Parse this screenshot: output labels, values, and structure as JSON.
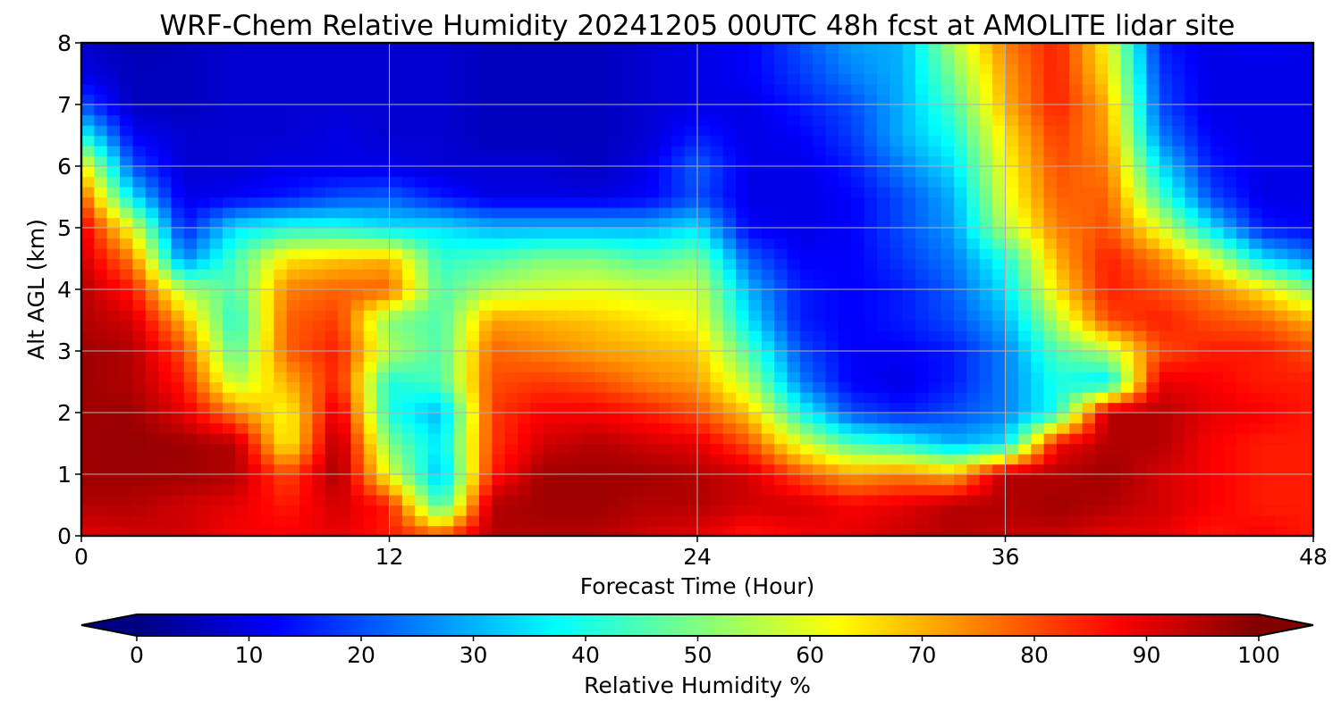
{
  "chart_data": {
    "type": "heatmap",
    "title": "WRF-Chem Relative Humidity 20241205 00UTC 48h fcst at AMOLITE lidar site",
    "xlabel": "Forecast Time (Hour)",
    "ylabel": "Alt AGL (km)",
    "xlim": [
      0,
      48
    ],
    "ylim": [
      0,
      8
    ],
    "xticks": [
      0,
      12,
      24,
      36,
      48
    ],
    "yticks": [
      0,
      1,
      2,
      3,
      4,
      5,
      6,
      7,
      8
    ],
    "grid": true,
    "colormap": "jet",
    "colorbar": {
      "label": "Relative Humidity %",
      "range": [
        0,
        100
      ],
      "ticks": [
        0,
        10,
        20,
        30,
        40,
        50,
        60,
        70,
        80,
        90,
        100
      ],
      "extend": "both",
      "orientation": "horizontal"
    },
    "z_altitudes_km": [
      0,
      0.5,
      1,
      1.5,
      2,
      2.5,
      3,
      3.5,
      4,
      4.5,
      5,
      5.5,
      6,
      6.5,
      7,
      7.5,
      8
    ],
    "z_hours": [
      0,
      2,
      4,
      6,
      8,
      10,
      12,
      14,
      16,
      18,
      20,
      22,
      24,
      26,
      28,
      30,
      32,
      34,
      36,
      38,
      40,
      42,
      44,
      46,
      48
    ],
    "z_values": [
      [
        90,
        92,
        92,
        88,
        88,
        90,
        85,
        80,
        95,
        95,
        95,
        92,
        90,
        85,
        88,
        90,
        93,
        95,
        93,
        93,
        90,
        90,
        85,
        88,
        85
      ],
      [
        95,
        95,
        92,
        90,
        85,
        92,
        85,
        42,
        95,
        97,
        97,
        95,
        95,
        92,
        92,
        88,
        90,
        95,
        95,
        97,
        95,
        92,
        88,
        85,
        85
      ],
      [
        97,
        97,
        97,
        95,
        80,
        97,
        60,
        30,
        85,
        97,
        97,
        97,
        95,
        92,
        80,
        72,
        75,
        70,
        95,
        95,
        97,
        92,
        88,
        85,
        85
      ],
      [
        97,
        98,
        97,
        95,
        62,
        97,
        50,
        35,
        82,
        92,
        95,
        92,
        90,
        80,
        60,
        45,
        40,
        30,
        35,
        88,
        95,
        95,
        88,
        85,
        85
      ],
      [
        97,
        97,
        90,
        75,
        62,
        92,
        40,
        30,
        82,
        88,
        88,
        85,
        80,
        68,
        40,
        20,
        15,
        20,
        25,
        40,
        95,
        95,
        90,
        88,
        85
      ],
      [
        97,
        95,
        85,
        55,
        70,
        85,
        40,
        45,
        80,
        82,
        80,
        75,
        72,
        55,
        25,
        12,
        10,
        15,
        25,
        40,
        35,
        90,
        88,
        85,
        85
      ],
      [
        97,
        95,
        80,
        45,
        78,
        85,
        55,
        45,
        78,
        75,
        72,
        70,
        68,
        45,
        20,
        12,
        12,
        15,
        25,
        45,
        55,
        80,
        85,
        85,
        80
      ],
      [
        95,
        92,
        70,
        40,
        78,
        82,
        50,
        45,
        72,
        70,
        68,
        65,
        62,
        35,
        15,
        12,
        15,
        20,
        30,
        55,
        80,
        85,
        80,
        78,
        70
      ],
      [
        95,
        85,
        55,
        45,
        75,
        78,
        78,
        45,
        55,
        58,
        60,
        58,
        58,
        30,
        15,
        12,
        15,
        22,
        35,
        65,
        85,
        80,
        75,
        65,
        50
      ],
      [
        92,
        75,
        25,
        45,
        65,
        68,
        70,
        42,
        45,
        50,
        50,
        45,
        50,
        22,
        12,
        12,
        18,
        25,
        40,
        70,
        85,
        75,
        60,
        35,
        25
      ],
      [
        90,
        60,
        15,
        35,
        40,
        40,
        35,
        35,
        30,
        30,
        30,
        30,
        35,
        12,
        10,
        12,
        20,
        28,
        55,
        75,
        80,
        60,
        35,
        15,
        12
      ],
      [
        80,
        35,
        10,
        12,
        15,
        20,
        22,
        15,
        10,
        10,
        10,
        12,
        20,
        10,
        10,
        12,
        20,
        30,
        60,
        78,
        78,
        45,
        20,
        10,
        10
      ],
      [
        65,
        20,
        8,
        8,
        10,
        10,
        10,
        8,
        8,
        8,
        6,
        10,
        22,
        10,
        10,
        15,
        25,
        35,
        62,
        80,
        75,
        35,
        15,
        10,
        10
      ],
      [
        40,
        12,
        8,
        8,
        8,
        10,
        8,
        8,
        6,
        6,
        6,
        8,
        15,
        10,
        12,
        18,
        30,
        40,
        65,
        82,
        72,
        25,
        12,
        10,
        10
      ],
      [
        20,
        6,
        6,
        8,
        8,
        8,
        8,
        8,
        6,
        6,
        6,
        8,
        10,
        10,
        15,
        20,
        30,
        45,
        70,
        85,
        70,
        20,
        10,
        10,
        10
      ],
      [
        10,
        6,
        6,
        8,
        8,
        8,
        8,
        8,
        6,
        6,
        6,
        8,
        10,
        12,
        18,
        25,
        30,
        50,
        72,
        85,
        65,
        18,
        10,
        10,
        10
      ],
      [
        8,
        5,
        6,
        8,
        8,
        8,
        8,
        8,
        6,
        6,
        6,
        8,
        10,
        12,
        20,
        28,
        30,
        55,
        75,
        85,
        62,
        15,
        10,
        12,
        10
      ]
    ]
  }
}
